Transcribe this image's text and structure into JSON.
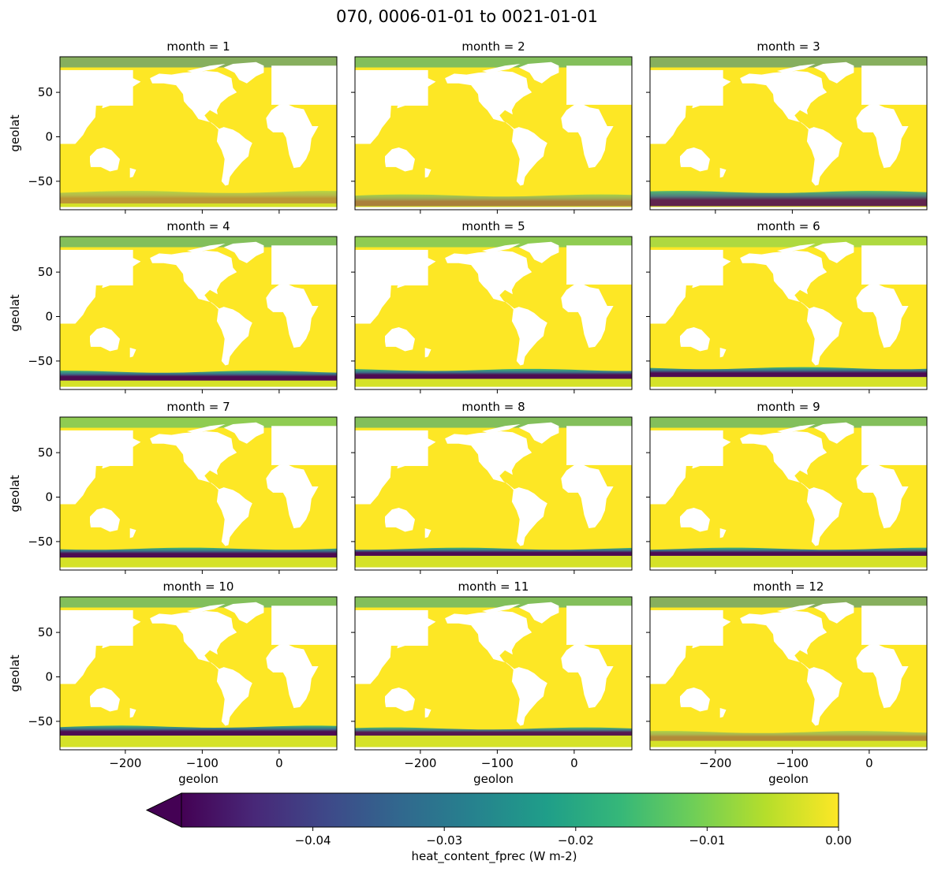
{
  "chart_data": {
    "type": "heatmap",
    "title": "070, 0006-01-01 to 0021-01-01",
    "panel_title_prefix": "month = ",
    "panels": [
      {
        "month": 1,
        "title": "month = 1",
        "south_band_intensity": 0.35,
        "north_band_intensity": 0.55,
        "south_band_lat": [
          -75,
          -62
        ]
      },
      {
        "month": 2,
        "title": "month = 2",
        "south_band_intensity": 0.45,
        "north_band_intensity": 0.5,
        "south_band_lat": [
          -78,
          -66
        ]
      },
      {
        "month": 3,
        "title": "month = 3",
        "south_band_intensity": 0.85,
        "north_band_intensity": 0.55,
        "south_band_lat": [
          -78,
          -62
        ]
      },
      {
        "month": 4,
        "title": "month = 4",
        "south_band_intensity": 0.95,
        "north_band_intensity": 0.5,
        "south_band_lat": [
          -72,
          -62
        ]
      },
      {
        "month": 5,
        "title": "month = 5",
        "south_band_intensity": 0.95,
        "north_band_intensity": 0.3,
        "south_band_lat": [
          -70,
          -60
        ]
      },
      {
        "month": 6,
        "title": "month = 6",
        "south_band_intensity": 0.95,
        "north_band_intensity": 0.2,
        "south_band_lat": [
          -68,
          -58
        ]
      },
      {
        "month": 7,
        "title": "month = 7",
        "south_band_intensity": 0.95,
        "north_band_intensity": 0.3,
        "south_band_lat": [
          -68,
          -58
        ]
      },
      {
        "month": 8,
        "title": "month = 8",
        "south_band_intensity": 0.95,
        "north_band_intensity": 0.45,
        "south_band_lat": [
          -66,
          -58
        ]
      },
      {
        "month": 9,
        "title": "month = 9",
        "south_band_intensity": 0.95,
        "north_band_intensity": 0.45,
        "south_band_lat": [
          -66,
          -58
        ]
      },
      {
        "month": 10,
        "title": "month = 10",
        "south_band_intensity": 0.95,
        "north_band_intensity": 0.5,
        "south_band_lat": [
          -66,
          -56
        ]
      },
      {
        "month": 11,
        "title": "month = 11",
        "south_band_intensity": 0.9,
        "north_band_intensity": 0.5,
        "south_band_lat": [
          -66,
          -58
        ]
      },
      {
        "month": 12,
        "title": "month = 12",
        "south_band_intensity": 0.4,
        "north_band_intensity": 0.55,
        "south_band_lat": [
          -72,
          -62
        ]
      }
    ],
    "xlabel": "geolon",
    "ylabel": "geolat",
    "xlim": [
      -285,
      75
    ],
    "ylim": [
      -82,
      90
    ],
    "xticks": [
      -200,
      -100,
      0
    ],
    "xtick_labels": [
      "−200",
      "−100",
      "0"
    ],
    "yticks": [
      50,
      0,
      -50
    ],
    "ytick_labels": [
      "50",
      "0",
      "−50"
    ],
    "colorbar": {
      "label": "heat_content_fprec (W m-2)",
      "min": -0.05,
      "max": 0.0,
      "extend": "min",
      "ticks": [
        -0.04,
        -0.03,
        -0.02,
        -0.01,
        0.0
      ],
      "tick_labels": [
        "−0.04",
        "−0.03",
        "−0.02",
        "−0.01",
        "0.00"
      ],
      "colormap": "viridis",
      "colors": [
        "#440154",
        "#482878",
        "#3e4989",
        "#31688e",
        "#26828e",
        "#1f9e89",
        "#35b779",
        "#6ece58",
        "#b5de2b",
        "#fde725"
      ]
    },
    "land_color": "#ffffff",
    "ocean_color": "#fde725"
  }
}
